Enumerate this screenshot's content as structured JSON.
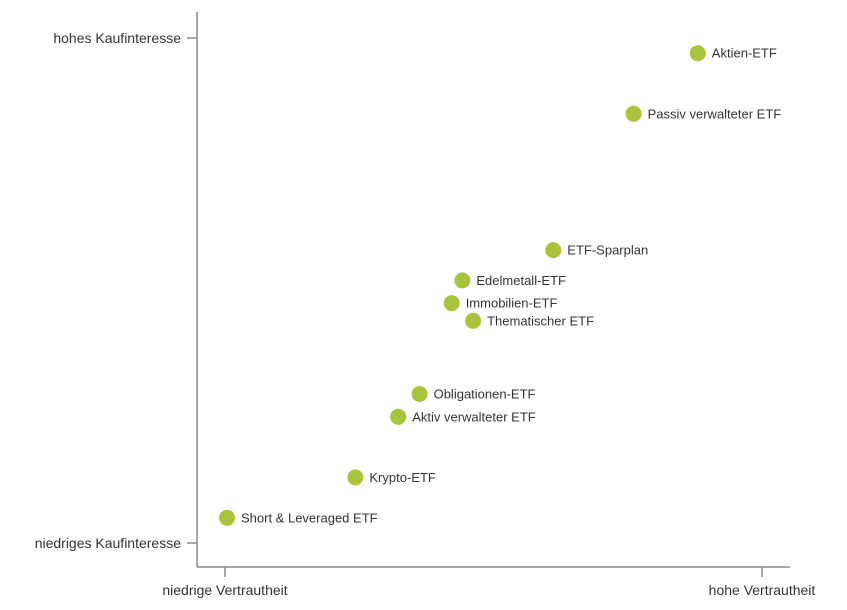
{
  "chart_data": {
    "type": "scatter",
    "title": "",
    "xlabel": "",
    "ylabel": "",
    "x_min_label": "niedrige Vertrautheit",
    "x_max_label": "hohe Vertrautheit",
    "y_min_label": "niedriges Kaufinteresse",
    "y_max_label": "hohes Kaufinteresse",
    "xlim": [
      0,
      100
    ],
    "ylim": [
      0,
      100
    ],
    "grid": false,
    "marker_color": "#a8c43a",
    "label_color": "#333333",
    "axis_color": "#8a8a8a",
    "points": [
      {
        "label": "Aktien-ETF",
        "x": 88,
        "y": 97
      },
      {
        "label": "Passiv verwalteter ETF",
        "x": 76,
        "y": 85
      },
      {
        "label": "ETF-Sparplan",
        "x": 61,
        "y": 58
      },
      {
        "label": "Edelmetall-ETF",
        "x": 44,
        "y": 52
      },
      {
        "label": "Immobilien-ETF",
        "x": 42,
        "y": 47.5
      },
      {
        "label": "Thematischer ETF",
        "x": 46,
        "y": 44
      },
      {
        "label": "Obligationen-ETF",
        "x": 36,
        "y": 29.5
      },
      {
        "label": "Aktiv verwalteter ETF",
        "x": 32,
        "y": 25
      },
      {
        "label": "Krypto-ETF",
        "x": 24,
        "y": 13
      },
      {
        "label": "Short & Leveraged ETF",
        "x": 0,
        "y": 5
      }
    ]
  }
}
